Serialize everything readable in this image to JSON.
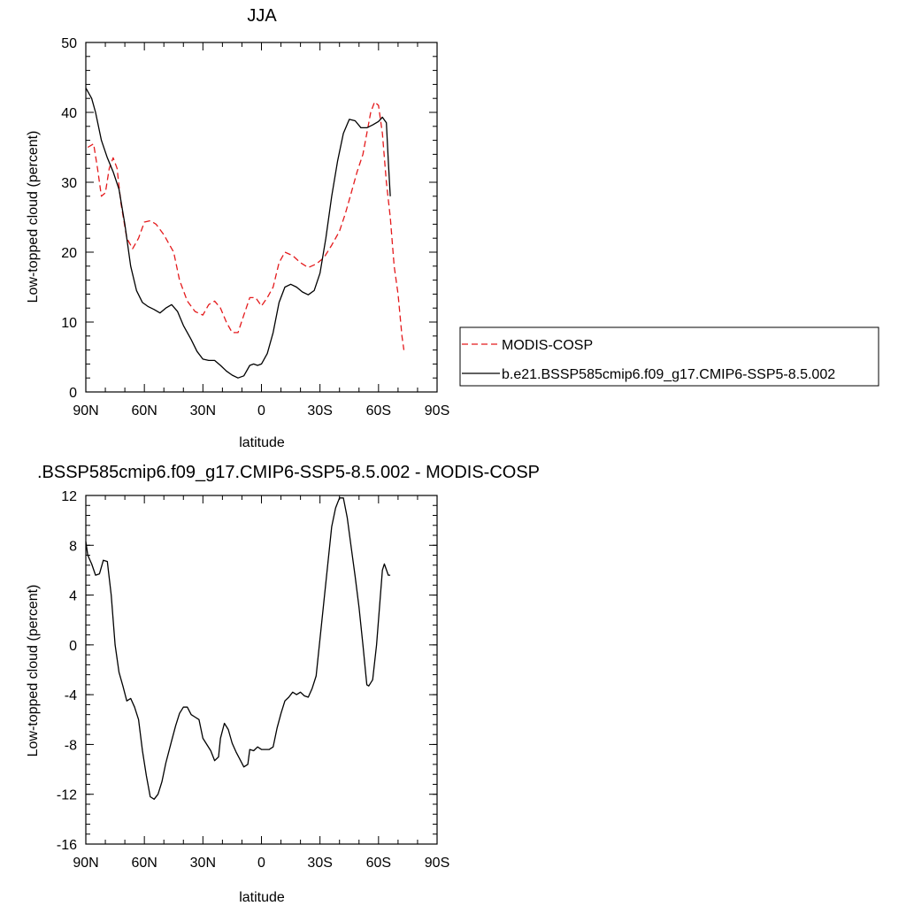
{
  "chart_data": [
    {
      "type": "line",
      "title": "JJA",
      "xlabel": "latitude",
      "ylabel": "Low-topped cloud (percent)",
      "xlim": [
        90,
        -90
      ],
      "ylim": [
        0,
        50
      ],
      "x_ticks": [
        {
          "value": 90,
          "label": "90N"
        },
        {
          "value": 60,
          "label": "60N"
        },
        {
          "value": 30,
          "label": "30N"
        },
        {
          "value": 0,
          "label": "0"
        },
        {
          "value": -30,
          "label": "30S"
        },
        {
          "value": -60,
          "label": "60S"
        },
        {
          "value": -90,
          "label": "90S"
        }
      ],
      "y_ticks": [
        {
          "value": 0,
          "label": "0"
        },
        {
          "value": 10,
          "label": "10"
        },
        {
          "value": 20,
          "label": "20"
        },
        {
          "value": 30,
          "label": "30"
        },
        {
          "value": 40,
          "label": "40"
        },
        {
          "value": 50,
          "label": "50"
        }
      ],
      "legend": {
        "placement": "right",
        "entries": [
          {
            "label": "MODIS-COSP",
            "color": "#e41a1c",
            "dash": "dashed"
          },
          {
            "label": "b.e21.BSSP585cmip6.f09_g17.CMIP6-SSP5-8.5.002",
            "color": "#000000",
            "dash": "solid"
          }
        ]
      },
      "series": [
        {
          "name": "MODIS-COSP",
          "color": "#e41a1c",
          "dash": "dashed",
          "points": [
            [
              89,
              35
            ],
            [
              86,
              35.5
            ],
            [
              84,
              32
            ],
            [
              82,
              28
            ],
            [
              80,
              28.5
            ],
            [
              78,
              32
            ],
            [
              76,
              33.5
            ],
            [
              74,
              32
            ],
            [
              72,
              27
            ],
            [
              69,
              22
            ],
            [
              66,
              20.5
            ],
            [
              63,
              22
            ],
            [
              60,
              24.3
            ],
            [
              57,
              24.5
            ],
            [
              54,
              24
            ],
            [
              50,
              22.5
            ],
            [
              45,
              20
            ],
            [
              42,
              16
            ],
            [
              38,
              13
            ],
            [
              34,
              11.5
            ],
            [
              30,
              11
            ],
            [
              27,
              12.5
            ],
            [
              24,
              13
            ],
            [
              21,
              12
            ],
            [
              18,
              10
            ],
            [
              15,
              8.5
            ],
            [
              12,
              8.5
            ],
            [
              9,
              11
            ],
            [
              6,
              13.5
            ],
            [
              3,
              13.5
            ],
            [
              0,
              12.3
            ],
            [
              -3,
              13.5
            ],
            [
              -6,
              15
            ],
            [
              -9,
              18.5
            ],
            [
              -12,
              20
            ],
            [
              -16,
              19.5
            ],
            [
              -20,
              18.5
            ],
            [
              -24,
              17.8
            ],
            [
              -28,
              18.3
            ],
            [
              -32,
              19.2
            ],
            [
              -36,
              21
            ],
            [
              -40,
              23
            ],
            [
              -43,
              25.5
            ],
            [
              -46,
              28.5
            ],
            [
              -49,
              31.5
            ],
            [
              -52,
              34
            ],
            [
              -54,
              37
            ],
            [
              -56,
              40
            ],
            [
              -58,
              41.5
            ],
            [
              -60,
              41
            ],
            [
              -62,
              37
            ],
            [
              -64,
              30
            ],
            [
              -66,
              25
            ],
            [
              -68,
              18
            ],
            [
              -70,
              14
            ],
            [
              -72,
              8
            ],
            [
              -73,
              6
            ]
          ]
        },
        {
          "name": "b.e21.BSSP585cmip6.f09_g17.CMIP6-SSP5-8.5.002",
          "color": "#000000",
          "dash": "solid",
          "points": [
            [
              90,
              43.5
            ],
            [
              87,
              42
            ],
            [
              85,
              40
            ],
            [
              82,
              36
            ],
            [
              79,
              33.5
            ],
            [
              76,
              31.5
            ],
            [
              73,
              29
            ],
            [
              70,
              24
            ],
            [
              67,
              18
            ],
            [
              64,
              14.5
            ],
            [
              61,
              12.8
            ],
            [
              58,
              12.2
            ],
            [
              55,
              11.8
            ],
            [
              52,
              11.3
            ],
            [
              49,
              12
            ],
            [
              46,
              12.5
            ],
            [
              43,
              11.5
            ],
            [
              40,
              9.5
            ],
            [
              36,
              7.5
            ],
            [
              33,
              5.8
            ],
            [
              30,
              4.7
            ],
            [
              27,
              4.5
            ],
            [
              24,
              4.5
            ],
            [
              21,
              3.8
            ],
            [
              18,
              3
            ],
            [
              15,
              2.4
            ],
            [
              12,
              2
            ],
            [
              9,
              2.3
            ],
            [
              6,
              3.8
            ],
            [
              4,
              4
            ],
            [
              2,
              3.8
            ],
            [
              0,
              4
            ],
            [
              -3,
              5.5
            ],
            [
              -6,
              8.5
            ],
            [
              -9,
              12.8
            ],
            [
              -12,
              15
            ],
            [
              -15,
              15.4
            ],
            [
              -18,
              15
            ],
            [
              -21,
              14.3
            ],
            [
              -24,
              13.9
            ],
            [
              -27,
              14.5
            ],
            [
              -30,
              17
            ],
            [
              -33,
              22
            ],
            [
              -36,
              28
            ],
            [
              -39,
              33
            ],
            [
              -42,
              37
            ],
            [
              -45,
              39
            ],
            [
              -48,
              38.8
            ],
            [
              -51,
              37.8
            ],
            [
              -54,
              37.8
            ],
            [
              -57,
              38.2
            ],
            [
              -60,
              38.7
            ],
            [
              -62,
              39.3
            ],
            [
              -64,
              38.5
            ],
            [
              -65,
              33
            ],
            [
              -66,
              28
            ]
          ]
        }
      ]
    },
    {
      "type": "line",
      "title": ".BSSP585cmip6.f09_g17.CMIP6-SSP5-8.5.002 - MODIS-COSP",
      "xlabel": "latitude",
      "ylabel": "Low-topped cloud (percent)",
      "xlim": [
        90,
        -90
      ],
      "ylim": [
        -16,
        12
      ],
      "x_ticks": [
        {
          "value": 90,
          "label": "90N"
        },
        {
          "value": 60,
          "label": "60N"
        },
        {
          "value": 30,
          "label": "30N"
        },
        {
          "value": 0,
          "label": "0"
        },
        {
          "value": -30,
          "label": "30S"
        },
        {
          "value": -60,
          "label": "60S"
        },
        {
          "value": -90,
          "label": "90S"
        }
      ],
      "y_ticks": [
        {
          "value": -16,
          "label": "-16"
        },
        {
          "value": -12,
          "label": "-12"
        },
        {
          "value": -8,
          "label": "-8"
        },
        {
          "value": -4,
          "label": "-4"
        },
        {
          "value": 0,
          "label": "0"
        },
        {
          "value": 4,
          "label": "4"
        },
        {
          "value": 8,
          "label": "8"
        },
        {
          "value": 12,
          "label": "12"
        }
      ],
      "series": [
        {
          "color": "#000000",
          "dash": "solid",
          "points": [
            [
              90,
              8.3
            ],
            [
              89,
              7.2
            ],
            [
              87,
              6.5
            ],
            [
              85,
              5.6
            ],
            [
              83,
              5.7
            ],
            [
              81,
              6.8
            ],
            [
              79,
              6.7
            ],
            [
              77,
              4
            ],
            [
              75,
              0
            ],
            [
              73,
              -2.2
            ],
            [
              71,
              -3.3
            ],
            [
              69,
              -4.5
            ],
            [
              67,
              -4.3
            ],
            [
              65,
              -5
            ],
            [
              63,
              -6
            ],
            [
              61,
              -8.5
            ],
            [
              59,
              -10.5
            ],
            [
              57,
              -12.2
            ],
            [
              55,
              -12.4
            ],
            [
              53,
              -12
            ],
            [
              51,
              -11
            ],
            [
              49,
              -9.5
            ],
            [
              46,
              -7.7
            ],
            [
              44,
              -6.5
            ],
            [
              42,
              -5.5
            ],
            [
              40,
              -5
            ],
            [
              38,
              -5
            ],
            [
              36,
              -5.6
            ],
            [
              34,
              -5.8
            ],
            [
              32,
              -6
            ],
            [
              30,
              -7.5
            ],
            [
              28,
              -8
            ],
            [
              26,
              -8.5
            ],
            [
              24,
              -9.3
            ],
            [
              22,
              -9
            ],
            [
              21,
              -7.5
            ],
            [
              19,
              -6.3
            ],
            [
              17,
              -6.8
            ],
            [
              15,
              -7.9
            ],
            [
              13,
              -8.6
            ],
            [
              11,
              -9.2
            ],
            [
              9,
              -9.8
            ],
            [
              7,
              -9.6
            ],
            [
              6,
              -8.4
            ],
            [
              4,
              -8.5
            ],
            [
              2,
              -8.2
            ],
            [
              0,
              -8.4
            ],
            [
              -2,
              -8.4
            ],
            [
              -4,
              -8.4
            ],
            [
              -6,
              -8.2
            ],
            [
              -8,
              -6.7
            ],
            [
              -10,
              -5.5
            ],
            [
              -12,
              -4.5
            ],
            [
              -14,
              -4.2
            ],
            [
              -16,
              -3.8
            ],
            [
              -18,
              -4
            ],
            [
              -20,
              -3.8
            ],
            [
              -22,
              -4.1
            ],
            [
              -24,
              -4.2
            ],
            [
              -26,
              -3.5
            ],
            [
              -28,
              -2.5
            ],
            [
              -30,
              0.5
            ],
            [
              -32,
              3.5
            ],
            [
              -34,
              6.5
            ],
            [
              -36,
              9.5
            ],
            [
              -38,
              11
            ],
            [
              -40,
              11.8
            ],
            [
              -42,
              11.8
            ],
            [
              -44,
              10.2
            ],
            [
              -46,
              7.8
            ],
            [
              -48,
              5.5
            ],
            [
              -50,
              3
            ],
            [
              -52,
              0
            ],
            [
              -54,
              -3.2
            ],
            [
              -55,
              -3.3
            ],
            [
              -57,
              -2.8
            ],
            [
              -59,
              0
            ],
            [
              -61,
              4
            ],
            [
              -62,
              6
            ],
            [
              -63,
              6.5
            ],
            [
              -65,
              5.6
            ],
            [
              -66,
              5.6
            ]
          ]
        }
      ]
    }
  ]
}
